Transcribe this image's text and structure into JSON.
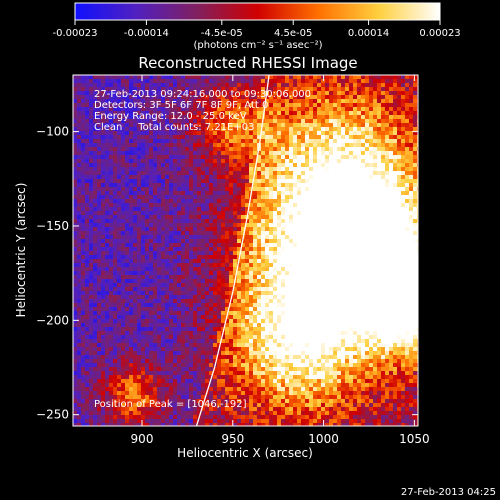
{
  "chart_data": {
    "type": "heatmap",
    "title": "Reconstructed RHESSI Image",
    "xlabel": "Heliocentric X (arcsec)",
    "ylabel": "Heliocentric Y (arcsec)",
    "xlim": [
      862,
      1052
    ],
    "ylim": [
      -256,
      -70
    ],
    "x_ticks": [
      900,
      950,
      1000,
      1050
    ],
    "y_ticks": [
      -100,
      -150,
      -200,
      -250
    ],
    "colorbar": {
      "range": [
        -0.00023,
        0.00023
      ],
      "tick_values": [
        -0.00023,
        -0.00014,
        -4.5e-05,
        4.5e-05,
        0.00014,
        0.00023
      ],
      "tick_labels": [
        "-0.00023",
        "-0.00014",
        "-4.5e-05",
        "4.5e-05",
        "0.00014",
        "0.00023"
      ],
      "unit_label": "(photons cm⁻² s⁻¹ asec⁻²)",
      "colors": [
        "#1010ff",
        "#5020c0",
        "#802060",
        "#d00000",
        "#ff7000",
        "#ffd040",
        "#ffffff"
      ]
    },
    "annotations": {
      "time_range": "27-Feb-2013 09:24:16.000 to 09:30:06.000",
      "detectors": "Detectors: 3F 5F 6F 7F 8F 9F, Att 0",
      "energy_range": "Energy Range: 12.0 - 25.0 keV",
      "method_counts": "Clean     Total counts: 7.21E+03",
      "peak": "Position of Peak = [1046,-192]"
    },
    "peak_position": [
      1046,
      -192
    ],
    "limb_curve": [
      [
        930,
        -256
      ],
      [
        940,
        -225
      ],
      [
        950,
        -185
      ],
      [
        958,
        -145
      ],
      [
        965,
        -105
      ],
      [
        970,
        -70
      ]
    ],
    "bright_regions": [
      {
        "x": 1045,
        "y": -192,
        "radius": 18,
        "intensity": 1.0
      },
      {
        "x": 1000,
        "y": -170,
        "radius": 35,
        "intensity": 0.8
      },
      {
        "x": 1010,
        "y": -120,
        "radius": 30,
        "intensity": 0.7
      },
      {
        "x": 985,
        "y": -215,
        "radius": 25,
        "intensity": 0.65
      },
      {
        "x": 950,
        "y": -95,
        "radius": 15,
        "intensity": 0.55
      },
      {
        "x": 895,
        "y": -240,
        "radius": 12,
        "intensity": 0.6
      },
      {
        "x": 1030,
        "y": -160,
        "radius": 22,
        "intensity": 0.6
      }
    ]
  },
  "footer": {
    "timestamp": "27-Feb-2013 04:25"
  }
}
